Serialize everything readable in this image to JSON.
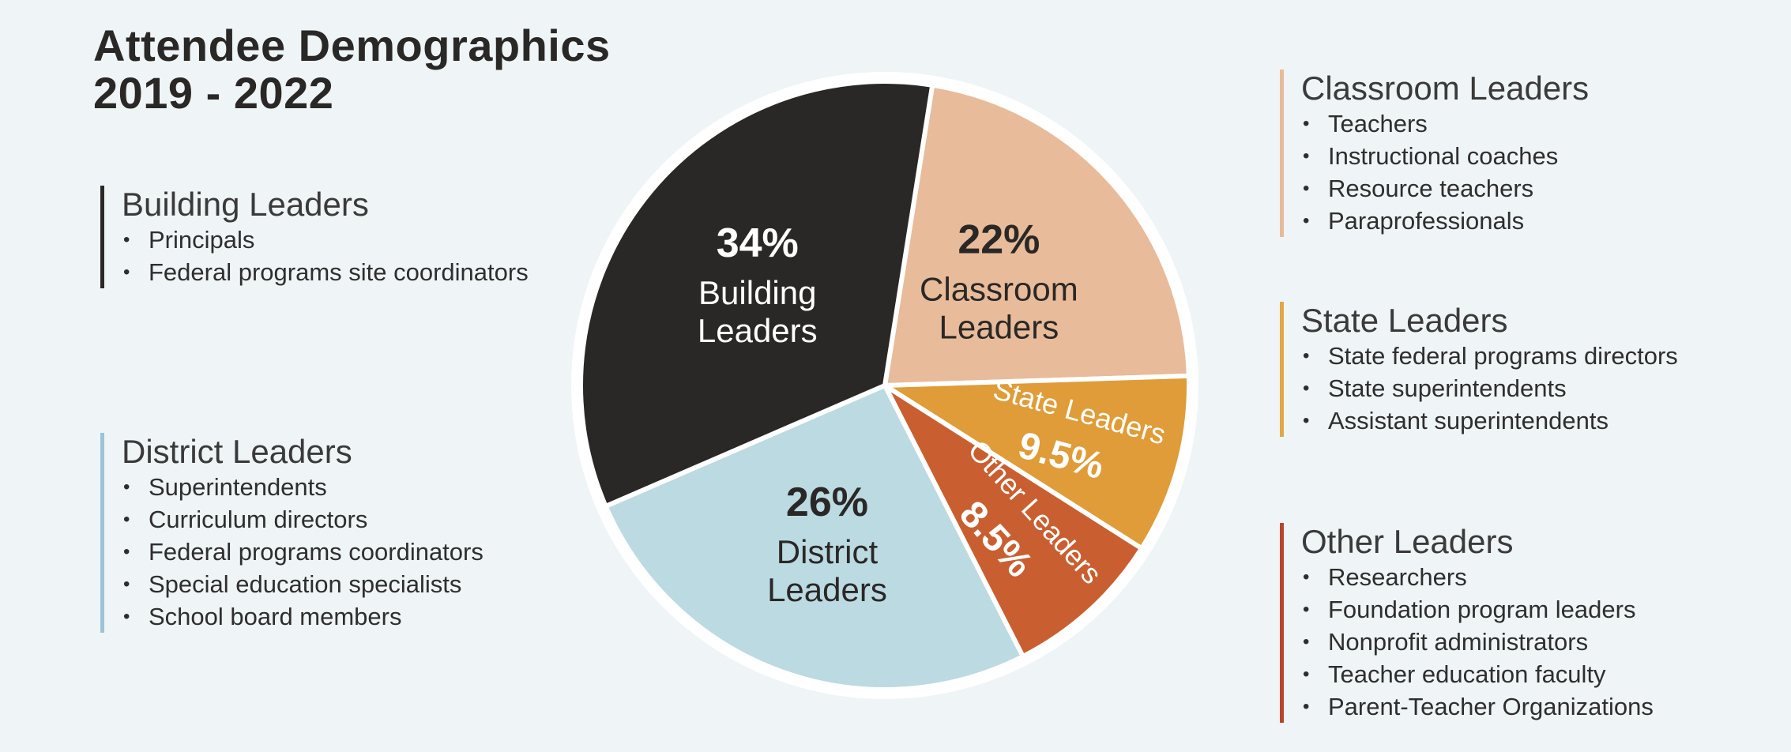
{
  "title": {
    "line1": "Attendee Demographics",
    "line2": "2019 - 2022"
  },
  "groups": {
    "building": {
      "heading": "Building Leaders",
      "color": "#2a2826",
      "items": [
        "Principals",
        "Federal programs site coordinators"
      ]
    },
    "district": {
      "heading": "District Leaders",
      "color": "#9cc3d6",
      "items": [
        "Superintendents",
        "Curriculum directors",
        "Federal programs coordinators",
        "Special education specialists",
        "School board members"
      ]
    },
    "classroom": {
      "heading": "Classroom Leaders",
      "color": "#e6bb98",
      "items": [
        "Teachers",
        "Instructional coaches",
        "Resource teachers",
        "Paraprofessionals"
      ]
    },
    "state": {
      "heading": "State Leaders",
      "color": "#e0a846",
      "items": [
        "State federal programs directors",
        "State superintendents",
        "Assistant superintendents"
      ]
    },
    "other": {
      "heading": "Other Leaders",
      "color": "#b8452d",
      "items": [
        "Researchers",
        "Foundation program leaders",
        "Nonprofit administrators",
        "Teacher education faculty",
        "Parent-Teacher Organizations"
      ]
    }
  },
  "chart_data": {
    "type": "pie",
    "title": "Attendee Demographics 2019 - 2022",
    "slices": [
      {
        "label_line1": "Classroom",
        "label_line2": "Leaders",
        "value": 22,
        "display": "22%",
        "color": "#e8bb9a",
        "text_color": "#2a2826"
      },
      {
        "label_line1": "State Leaders",
        "label_line2": "",
        "value": 9.5,
        "display": "9.5%",
        "color": "#df9c38",
        "text_color": "#ffffff"
      },
      {
        "label_line1": "Other Leaders",
        "label_line2": "",
        "value": 8.5,
        "display": "8.5%",
        "color": "#c95f30",
        "text_color": "#ffffff"
      },
      {
        "label_line1": "District",
        "label_line2": "Leaders",
        "value": 26,
        "display": "26%",
        "color": "#bcdae1",
        "text_color": "#2a2826"
      },
      {
        "label_line1": "Building",
        "label_line2": "Leaders",
        "value": 34,
        "display": "34%",
        "color": "#2a2826",
        "text_color": "#ffffff"
      }
    ]
  }
}
